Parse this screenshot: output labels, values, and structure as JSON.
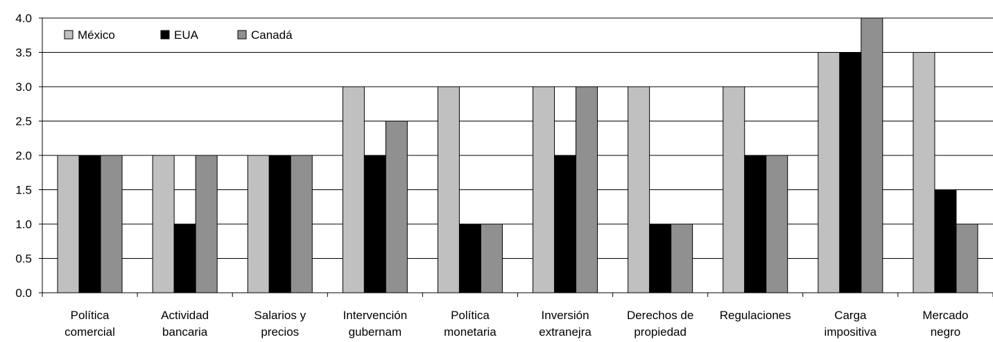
{
  "chart_data": {
    "type": "bar",
    "categories": [
      [
        "Política",
        "comercial"
      ],
      [
        "Actividad",
        "bancaria"
      ],
      [
        "Salarios y",
        "precios"
      ],
      [
        "Intervención",
        "gubernam"
      ],
      [
        "Política",
        "monetaria"
      ],
      [
        "Inversión",
        "extranejra"
      ],
      [
        "Derechos de",
        "propiedad"
      ],
      [
        "Regulaciones"
      ],
      [
        "Carga",
        "impositiva"
      ],
      [
        "Mercado",
        "negro"
      ]
    ],
    "series": [
      {
        "name": "México",
        "color": "#c0c0c0",
        "values": [
          2.0,
          2.0,
          2.0,
          3.0,
          3.0,
          3.0,
          3.0,
          3.0,
          3.5,
          3.5
        ]
      },
      {
        "name": "EUA",
        "color": "#000000",
        "values": [
          2.0,
          1.0,
          2.0,
          2.0,
          1.0,
          2.0,
          1.0,
          2.0,
          3.5,
          1.5
        ]
      },
      {
        "name": "Canadá",
        "color": "#909090",
        "values": [
          2.0,
          2.0,
          2.0,
          2.5,
          1.0,
          3.0,
          1.0,
          2.0,
          4.0,
          1.0
        ]
      }
    ],
    "yticks": [
      "0.0",
      "0.5",
      "1.0",
      "1.5",
      "2.0",
      "2.5",
      "3.0",
      "3.5",
      "4.0"
    ],
    "ylim": [
      0,
      4
    ],
    "grid": true,
    "legend_position": "top-left"
  }
}
